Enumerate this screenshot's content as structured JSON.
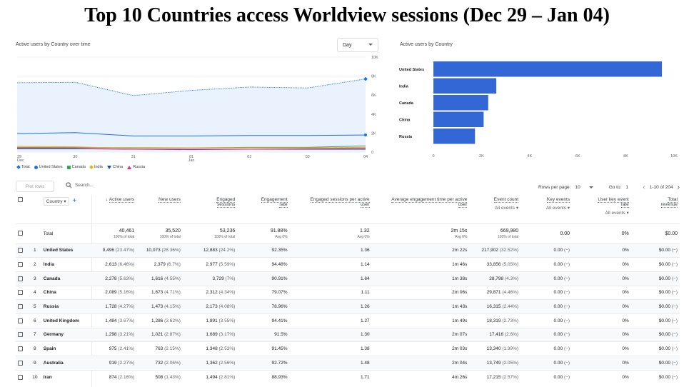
{
  "title": "Top 10 Countries access Worldview sessions (Dec 29 – Jan 04)",
  "line_card": {
    "title": "Active users by Country over time",
    "period_select": "Day",
    "legend": [
      {
        "name": "Total",
        "color": "#1a73e8"
      },
      {
        "name": "United States",
        "color": "#1a73e8"
      },
      {
        "name": "Canada",
        "color": "#34a853"
      },
      {
        "name": "India",
        "color": "#f9ab00"
      },
      {
        "name": "China",
        "color": "#174ea6"
      },
      {
        "name": "Russia",
        "color": "#e52592"
      }
    ]
  },
  "bar_card": {
    "title": "Active users by Country"
  },
  "toolbar": {
    "plot_rows": "Plot rows",
    "search_placeholder": "Search...",
    "rows_per_page_label": "Rows per page:",
    "rows_per_page_value": "10",
    "goto_label": "Go to:",
    "goto_value": "1",
    "range_text": "1-10 of 204"
  },
  "table": {
    "headers": {
      "country": "Country",
      "active_users": "Active users",
      "new_users": "New users",
      "engaged_sessions_1": "Engaged",
      "engaged_sessions_2": "sessions",
      "engagement_rate_1": "Engagement",
      "engagement_rate_2": "rate",
      "esp_1": "Engaged sessions per active",
      "esp_2": "user",
      "aet_1": "Average engagement time per active",
      "aet_2": "user",
      "event_count": "Event count",
      "event_count_sub": "All events",
      "key_events": "Key events",
      "key_events_sub": "All events",
      "ukr_1": "User key event",
      "ukr_2": "rate",
      "ukr_sub": "All events",
      "rev_1": "Total",
      "rev_2": "revenue"
    },
    "total": {
      "label": "Total",
      "active_users": "40,461",
      "active_users_pct": "100% of total",
      "new_users": "35,520",
      "new_users_pct": "100% of total",
      "engaged_sessions": "53,236",
      "engaged_sessions_pct": "100% of total",
      "engagement_rate": "91.88%",
      "engagement_rate_pct": "Avg 0%",
      "esp": "1.32",
      "esp_pct": "Avg 0%",
      "aet": "2m 15s",
      "aet_pct": "Avg 0%",
      "event_count": "669,980",
      "event_count_pct": "100% of total",
      "key_events": "0.00",
      "ukr": "0%",
      "revenue": "$0.00"
    },
    "rows": [
      {
        "n": "1",
        "country": "United States",
        "au": "9,496",
        "aup": "(23.47%)",
        "nu": "10,073",
        "nup": "(28.36%)",
        "es": "12,883",
        "esp": "(24.2%)",
        "er": "92.35%",
        "espu": "1.36",
        "aet": "2m 22s",
        "ec": "217,902",
        "ecp": "(32.52%)",
        "ke": "0.00",
        "kep": "(−)",
        "ukr": "0%",
        "rev": "$0.00",
        "revp": "(−)"
      },
      {
        "n": "2",
        "country": "India",
        "au": "2,613",
        "aup": "(6.46%)",
        "nu": "2,379",
        "nup": "(6.7%)",
        "es": "2,977",
        "esp": "(5.59%)",
        "er": "94.48%",
        "espu": "1.14",
        "aet": "1m 46s",
        "ec": "33,856",
        "ecp": "(5.05%)",
        "ke": "0.00",
        "kep": "(−)",
        "ukr": "0%",
        "rev": "$0.00",
        "revp": "(−)"
      },
      {
        "n": "3",
        "country": "Canada",
        "au": "2,278",
        "aup": "(5.63%)",
        "nu": "1,616",
        "nup": "(4.55%)",
        "es": "3,729",
        "esp": "(7%)",
        "er": "90.91%",
        "espu": "1.64",
        "aet": "1m 38s",
        "ec": "28,798",
        "ecp": "(4.3%)",
        "ke": "0.00",
        "kep": "(−)",
        "ukr": "0%",
        "rev": "$0.00",
        "revp": "(−)"
      },
      {
        "n": "4",
        "country": "China",
        "au": "2,089",
        "aup": "(5.16%)",
        "nu": "1,673",
        "nup": "(4.71%)",
        "es": "2,312",
        "esp": "(4.34%)",
        "er": "79.07%",
        "espu": "1.11",
        "aet": "2m 06s",
        "ec": "29,871",
        "ecp": "(4.46%)",
        "ke": "0.00",
        "kep": "(−)",
        "ukr": "0%",
        "rev": "$0.00",
        "revp": "(−)"
      },
      {
        "n": "5",
        "country": "Russia",
        "au": "1,728",
        "aup": "(4.27%)",
        "nu": "1,473",
        "nup": "(4.15%)",
        "es": "2,173",
        "esp": "(4.08%)",
        "er": "78.96%",
        "espu": "1.26",
        "aet": "1m 43s",
        "ec": "16,315",
        "ecp": "(2.44%)",
        "ke": "0.00",
        "kep": "(−)",
        "ukr": "0%",
        "rev": "$0.00",
        "revp": "(−)"
      },
      {
        "n": "6",
        "country": "United Kingdom",
        "au": "1,484",
        "aup": "(3.67%)",
        "nu": "1,286",
        "nup": "(3.62%)",
        "es": "1,891",
        "esp": "(3.55%)",
        "er": "94.41%",
        "espu": "1.27",
        "aet": "1m 49s",
        "ec": "18,319",
        "ecp": "(2.73%)",
        "ke": "0.00",
        "kep": "(−)",
        "ukr": "0%",
        "rev": "$0.00",
        "revp": "(−)"
      },
      {
        "n": "7",
        "country": "Germany",
        "au": "1,298",
        "aup": "(3.21%)",
        "nu": "1,021",
        "nup": "(2.87%)",
        "es": "1,689",
        "esp": "(3.17%)",
        "er": "91.5%",
        "espu": "1.30",
        "aet": "2m 07s",
        "ec": "17,416",
        "ecp": "(2.6%)",
        "ke": "0.00",
        "kep": "(−)",
        "ukr": "0%",
        "rev": "$0.00",
        "revp": "(−)"
      },
      {
        "n": "8",
        "country": "Spain",
        "au": "975",
        "aup": "(2.41%)",
        "nu": "763",
        "nup": "(2.15%)",
        "es": "1,348",
        "esp": "(2.53%)",
        "er": "91.45%",
        "espu": "1.38",
        "aet": "2m 03s",
        "ec": "13,340",
        "ecp": "(1.99%)",
        "ke": "0.00",
        "kep": "(−)",
        "ukr": "0%",
        "rev": "$0.00",
        "revp": "(−)"
      },
      {
        "n": "9",
        "country": "Australia",
        "au": "919",
        "aup": "(2.27%)",
        "nu": "732",
        "nup": "(2.06%)",
        "es": "1,362",
        "esp": "(2.56%)",
        "er": "92.72%",
        "espu": "1.48",
        "aet": "2m 04s",
        "ec": "13,749",
        "ecp": "(2.05%)",
        "ke": "0.00",
        "kep": "(−)",
        "ukr": "0%",
        "rev": "$0.00",
        "revp": "(−)"
      },
      {
        "n": "10",
        "country": "Iran",
        "au": "874",
        "aup": "(2.16%)",
        "nu": "508",
        "nup": "(1.43%)",
        "es": "1,494",
        "esp": "(2.81%)",
        "er": "88.93%",
        "espu": "1.71",
        "aet": "4m 26s",
        "ec": "17,215",
        "ecp": "(2.57%)",
        "ke": "0.00",
        "kep": "(−)",
        "ukr": "0%",
        "rev": "$0.00",
        "revp": "(−)"
      }
    ]
  },
  "chart_data": [
    {
      "type": "line",
      "x": [
        "29 Dec",
        "30",
        "31",
        "01 Jan",
        "02",
        "03",
        "04"
      ],
      "x_tick_labels": [
        [
          "29",
          "Dec"
        ],
        [
          "30"
        ],
        [
          "31"
        ],
        [
          "01",
          "Jan"
        ],
        [
          "02"
        ],
        [
          "03"
        ],
        [
          "04"
        ]
      ],
      "ylim": [
        0,
        10000
      ],
      "y_ticks": [
        "0",
        "2K",
        "4K",
        "6K",
        "8K",
        "10K"
      ],
      "series": [
        {
          "name": "Total",
          "color": "#1a73e8",
          "style": "dotted-area",
          "values": [
            7300,
            7350,
            5950,
            6500,
            6850,
            6750,
            7700
          ]
        },
        {
          "name": "United States",
          "color": "#1a73e8",
          "values": [
            1950,
            2050,
            1700,
            1700,
            1750,
            1750,
            1800
          ]
        },
        {
          "name": "Canada",
          "color": "#34a853",
          "values": [
            500,
            500,
            450,
            450,
            500,
            500,
            650
          ]
        },
        {
          "name": "India",
          "color": "#f9ab00",
          "values": [
            600,
            550,
            400,
            450,
            450,
            450,
            500
          ]
        },
        {
          "name": "China",
          "color": "#174ea6",
          "values": [
            350,
            350,
            300,
            300,
            300,
            300,
            300
          ]
        },
        {
          "name": "Russia",
          "color": "#e52592",
          "values": [
            400,
            400,
            300,
            250,
            300,
            350,
            400
          ]
        }
      ]
    },
    {
      "type": "bar",
      "orientation": "horizontal",
      "categories": [
        "United States",
        "India",
        "Canada",
        "China",
        "Russia"
      ],
      "values": [
        9496,
        2613,
        2278,
        2089,
        1728
      ],
      "xlim": [
        0,
        10000
      ],
      "x_ticks": [
        "0",
        "2K",
        "4K",
        "6K",
        "8K",
        "10K"
      ],
      "color": "#3367d6"
    }
  ]
}
